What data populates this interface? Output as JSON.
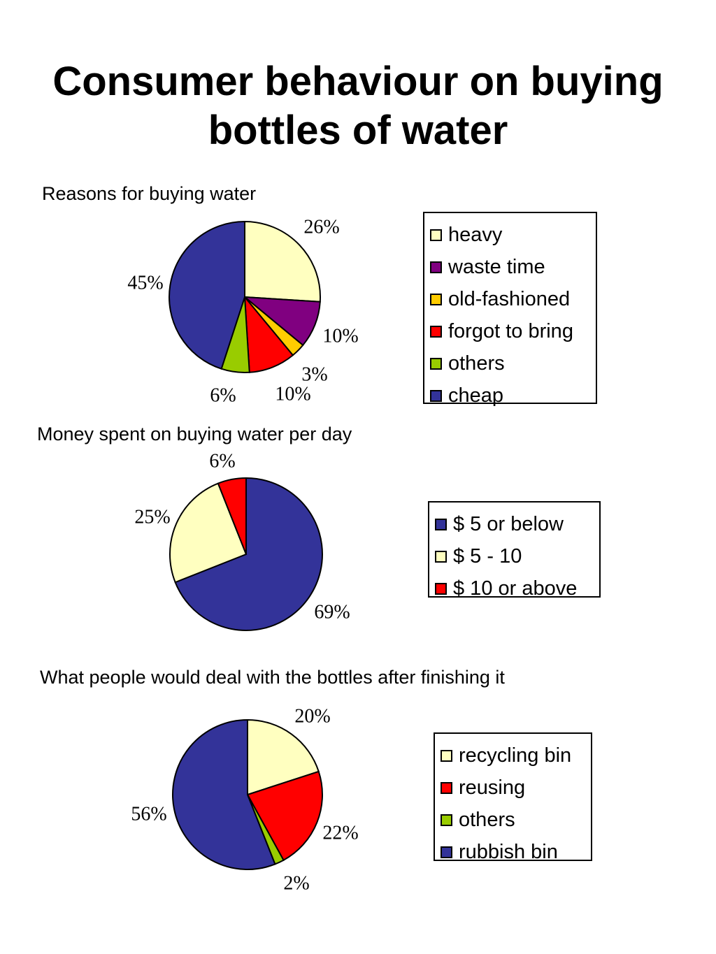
{
  "title": "Consumer behaviour on buying bottles of water",
  "chart_data": [
    {
      "type": "pie",
      "title": "Reasons for buying water",
      "legend_position": "right",
      "slices": [
        {
          "name": "heavy",
          "value": 26,
          "label": "26%",
          "color": "#FFFFC0"
        },
        {
          "name": "waste time",
          "value": 10,
          "label": "10%",
          "color": "#800080"
        },
        {
          "name": "old-fashioned",
          "value": 3,
          "label": "3%",
          "color": "#FFCC00"
        },
        {
          "name": "forgot to bring",
          "value": 10,
          "label": "10%",
          "color": "#FF0000"
        },
        {
          "name": "others",
          "value": 6,
          "label": "6%",
          "color": "#99CC00"
        },
        {
          "name": "cheap",
          "value": 45,
          "label": "45%",
          "color": "#333399"
        }
      ]
    },
    {
      "type": "pie",
      "title": "Money spent on buying water per day",
      "legend_position": "right",
      "slices": [
        {
          "name": "$ 5 or below",
          "value": 69,
          "label": "69%",
          "color": "#333399"
        },
        {
          "name": "$ 5 - 10",
          "value": 25,
          "label": "25%",
          "color": "#FFFFC0"
        },
        {
          "name": "$ 10 or above",
          "value": 6,
          "label": "6%",
          "color": "#FF0000"
        }
      ]
    },
    {
      "type": "pie",
      "title": "What people would deal with the bottles after finishing it",
      "legend_position": "right",
      "slices": [
        {
          "name": "recycling bin",
          "value": 20,
          "label": "20%",
          "color": "#FFFFC0"
        },
        {
          "name": "reusing",
          "value": 22,
          "label": "22%",
          "color": "#FF0000"
        },
        {
          "name": "others",
          "value": 2,
          "label": "2%",
          "color": "#99CC00"
        },
        {
          "name": "rubbish bin",
          "value": 56,
          "label": "56%",
          "color": "#333399"
        }
      ]
    }
  ]
}
